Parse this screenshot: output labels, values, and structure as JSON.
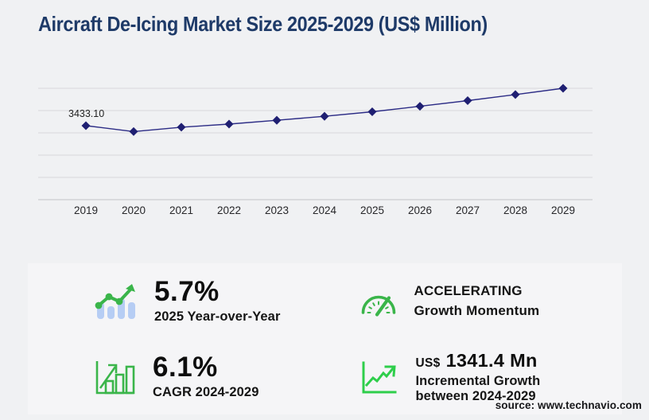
{
  "title": "Aircraft De-Icing Market Size 2025-2029 (US$ Million)",
  "source": "source: www.technavio.com",
  "colors": {
    "title_navy": "#1e3a68",
    "line_navy": "#2b2b85",
    "marker_navy": "#1f1f72",
    "accent_green": "#3ab54a",
    "bar_blue": "#b6cdf4",
    "gridline": "#d8d8db",
    "axis": "#c2c2c7"
  },
  "chart_data": {
    "type": "line",
    "title": "Aircraft De-Icing Market Size 2025-2029 (US$ Million)",
    "x": [
      2019,
      2020,
      2021,
      2022,
      2023,
      2024,
      2025,
      2026,
      2027,
      2028,
      2029
    ],
    "series": [
      {
        "name": "Market size (US$ Million)",
        "values": [
          3433.1,
          3150,
          3360,
          3510,
          3690,
          3880,
          4100,
          4360,
          4630,
          4920,
          5220
        ]
      }
    ],
    "data_labels": [
      {
        "x": 2019,
        "label": "3433.10"
      }
    ],
    "marker": "diamond",
    "grid": "horizontal",
    "legend": false,
    "xlabel": "",
    "ylabel": "",
    "ylim": [
      2700,
      5700
    ]
  },
  "panel": {
    "stats": [
      {
        "icon": "bar-trend-icon",
        "value": "5.7%",
        "label": "2025 Year-over-Year"
      },
      {
        "icon": "speedometer-icon",
        "line1": "ACCELERATING",
        "line2": "Growth Momentum"
      },
      {
        "icon": "growth-bars-icon",
        "value": "6.1%",
        "label": "CAGR 2024-2029"
      },
      {
        "icon": "incremental-growth-icon",
        "currency": "US$",
        "value": "1341.4 Mn",
        "label_line1": "Incremental Growth",
        "label_line2": "between 2024-2029"
      }
    ]
  }
}
